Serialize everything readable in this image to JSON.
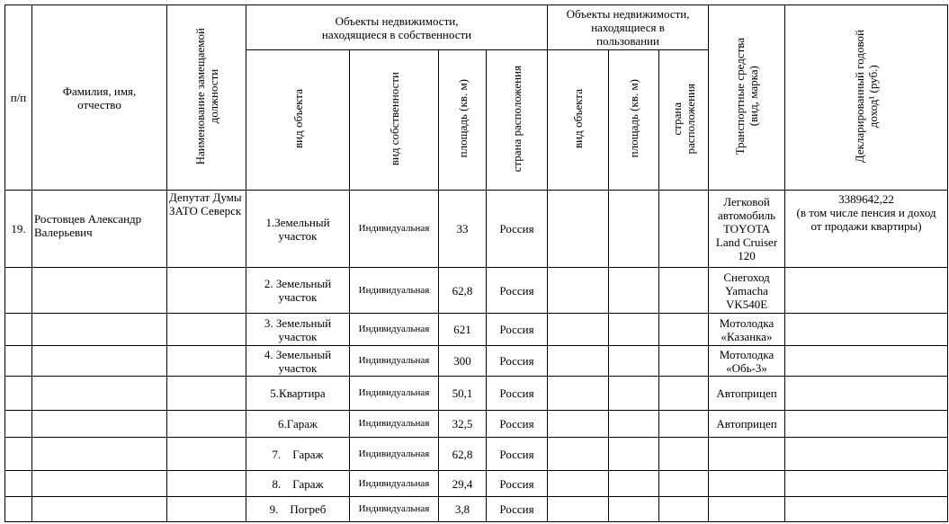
{
  "header": {
    "num": "п/п",
    "name": "Фамилия, имя,\nотчество",
    "position": "Наименование замещаемой\nдолжности",
    "owned_group": "Объекты недвижимости,\nнаходящиеся в собственности",
    "owned_type": "вид объекта",
    "owned_ownership": "вид собственности",
    "owned_area": "площадь (кв. м)",
    "owned_country": "страна расположения",
    "used_group": "Объекты недвижимости,\nнаходящиеся в\nпользовании",
    "used_type": "вид объекта",
    "used_area": "площадь (кв. м)",
    "used_country": "страна\nрасположения",
    "transport": "Транспортные средства\n(вид, марка)",
    "income": "Декларированный годовой\nдоход¹ (руб.)"
  },
  "person": {
    "num": "19.",
    "name": "Ростовцев Александр Валерьевич",
    "position": "Депутат Думы ЗАТО Северск",
    "income": "3389642,22\n(в том числе пенсия и доход от продажи квартиры)"
  },
  "rows": [
    {
      "type": "1.Земельный участок",
      "ownership": "Индивидуальная",
      "area": "33",
      "country": "Россия",
      "transport": "Легковой автомобиль TOYOTA Land Cruiser 120"
    },
    {
      "type": "2. Земельный участок",
      "ownership": "Индивидуальная",
      "area": "62,8",
      "country": "Россия",
      "transport": "Снегоход Yamacha VK540E"
    },
    {
      "type": "3. Земельный участок",
      "ownership": "Индивидуальная",
      "area": "621",
      "country": "Россия",
      "transport": "Мотолодка «Казанка»"
    },
    {
      "type": "4. Земельный участок",
      "ownership": "Индивидуальная",
      "area": "300",
      "country": "Россия",
      "transport": "Мотолодка «Обь-3»"
    },
    {
      "type": "5.Квартира",
      "ownership": "Индивидуальная",
      "area": "50,1",
      "country": "Россия",
      "transport": "Автоприцеп"
    },
    {
      "type": "6.Гараж",
      "ownership": "Индивидуальная",
      "area": "32,5",
      "country": "Россия",
      "transport": "Автоприцеп"
    },
    {
      "type": "7.    Гараж",
      "ownership": "Индивидуальная",
      "area": "62,8",
      "country": "Россия",
      "transport": ""
    },
    {
      "type": "8.    Гараж",
      "ownership": "Индивидуальная",
      "area": "29,4",
      "country": "Россия",
      "transport": ""
    },
    {
      "type": "9.    Погреб",
      "ownership": "Индивидуальная",
      "area": "3,8",
      "country": "Россия",
      "transport": ""
    }
  ]
}
